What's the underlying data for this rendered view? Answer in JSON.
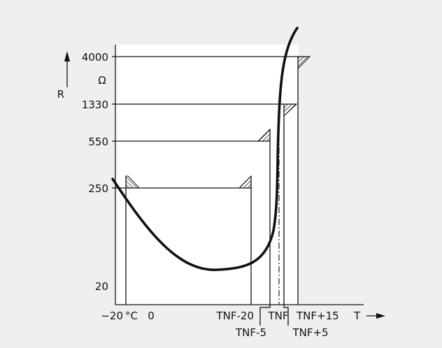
{
  "axes": {
    "y_symbol": "R",
    "y_unit": "Ω",
    "x_symbol": "T",
    "x_unit": "°C"
  },
  "y_ticks": [
    "4000",
    "1330",
    "550",
    "250",
    "20"
  ],
  "x_ticks": {
    "minus20": "−20",
    "zero": "0",
    "tnf_minus20": "TNF-20",
    "tnf_minus5": "TNF-5",
    "tnf": "TNF",
    "tnf_plus5": "TNF+5",
    "tnf_plus15": "TNF+15"
  }
}
